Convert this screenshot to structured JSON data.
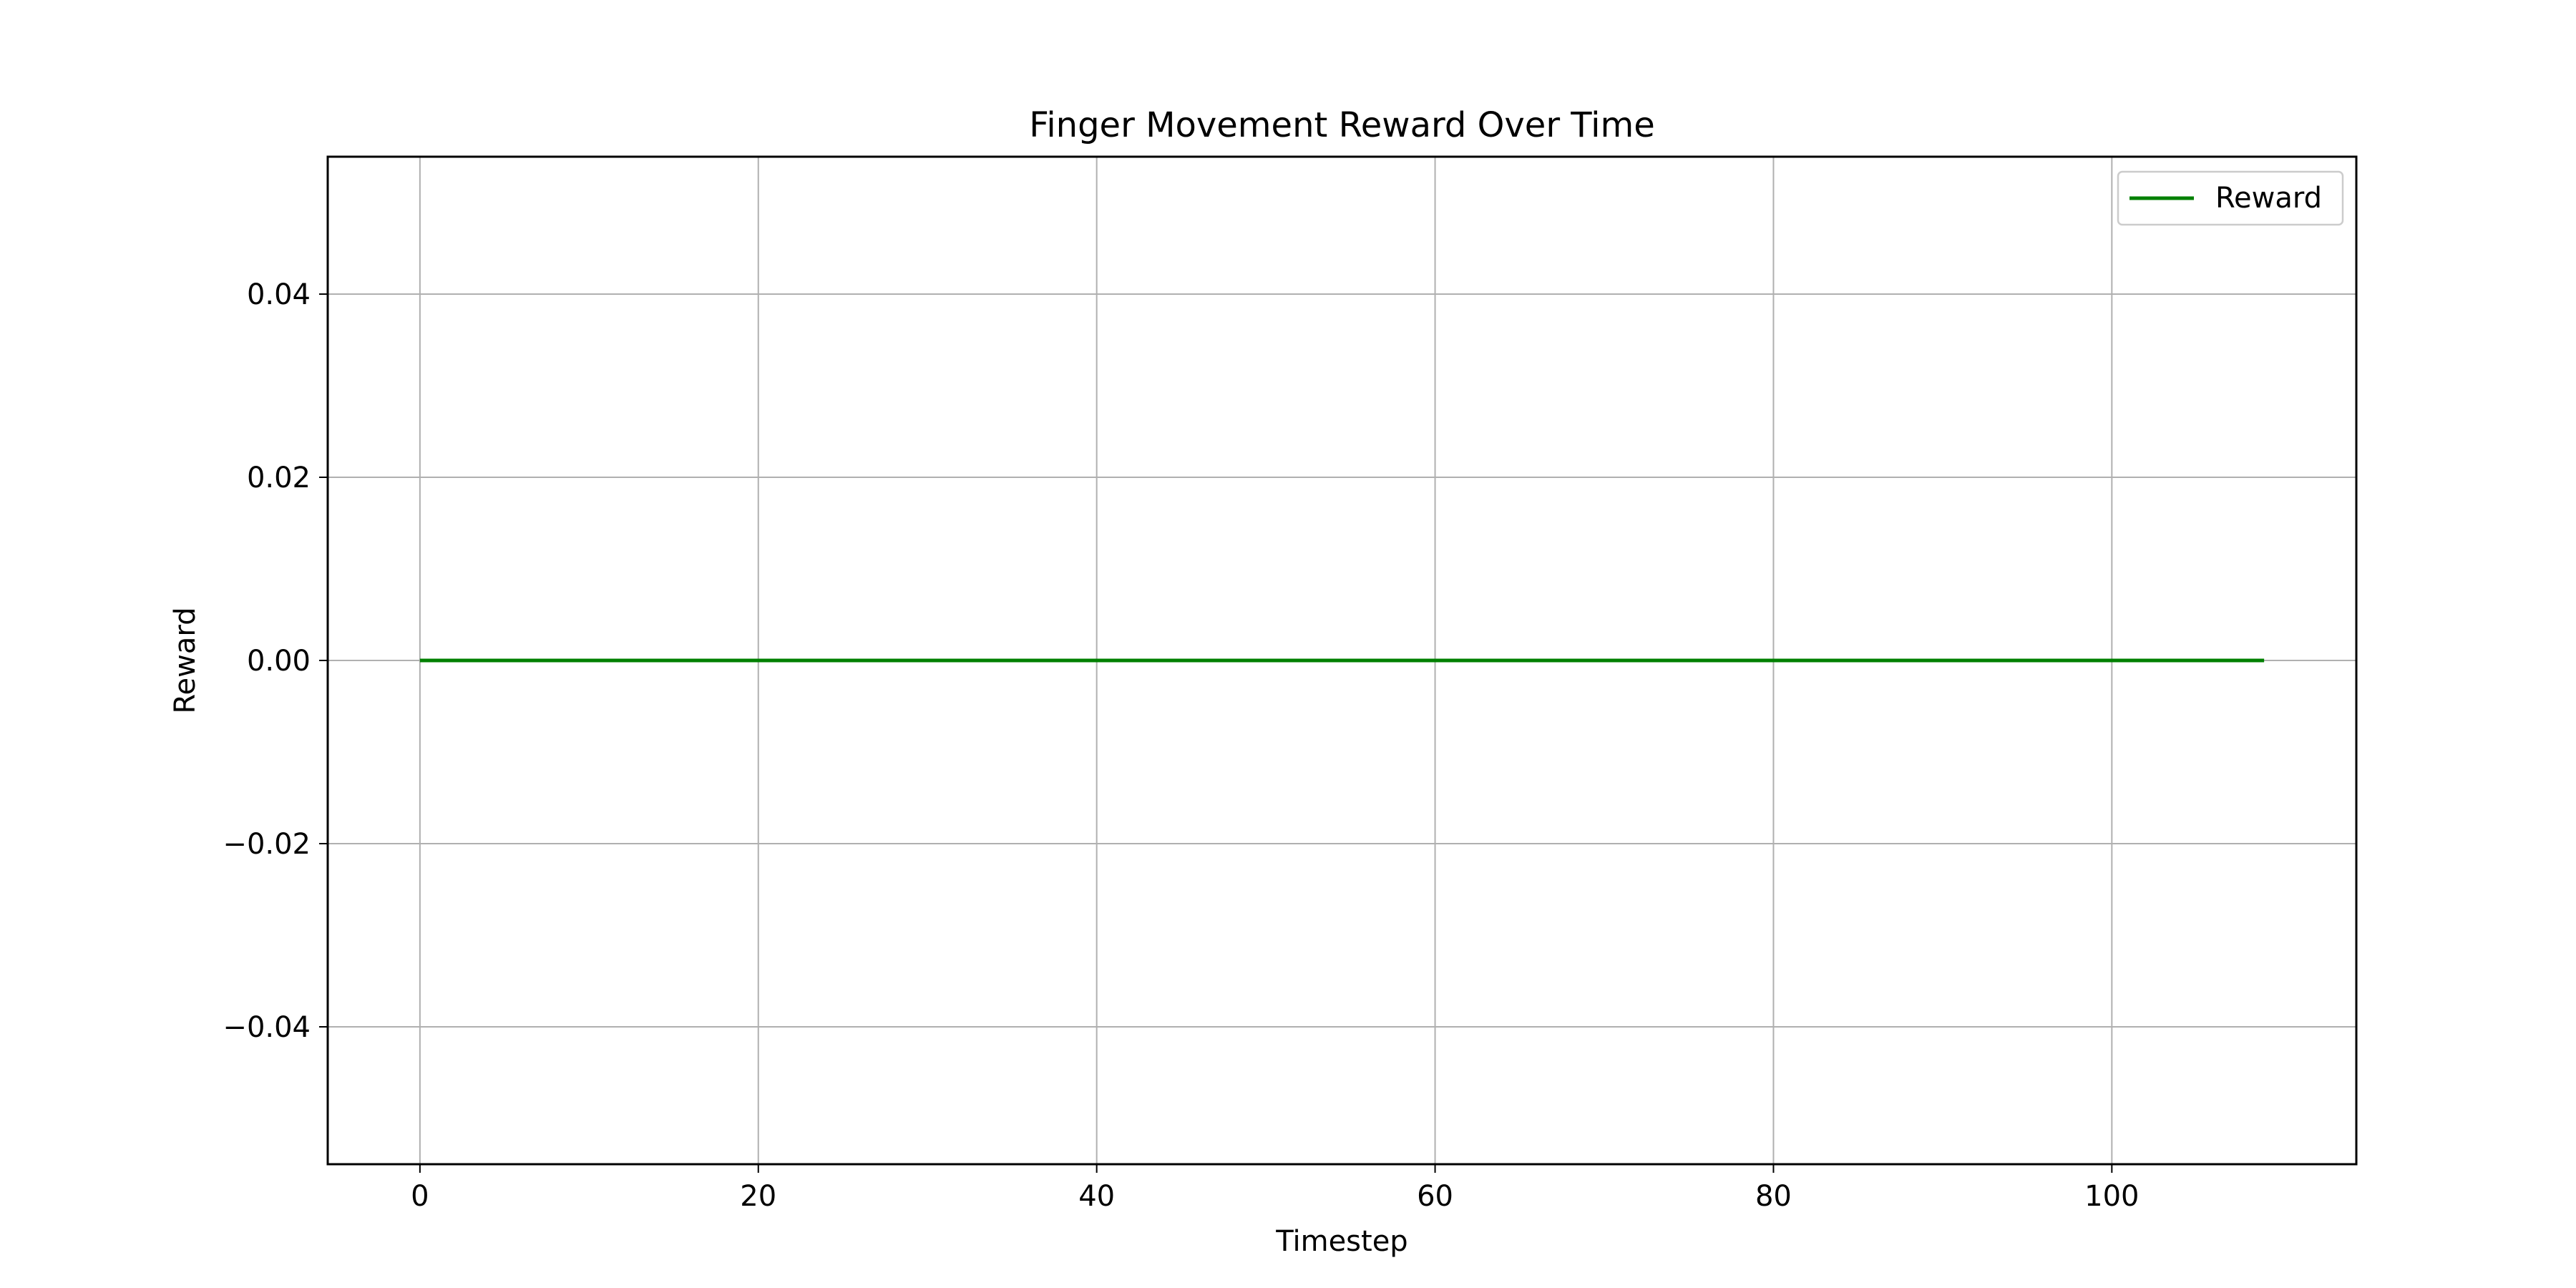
{
  "chart_data": {
    "type": "line",
    "title": "Finger Movement Reward Over Time",
    "xlabel": "Timestep",
    "ylabel": "Reward",
    "xlim": [
      -5.45,
      114.45
    ],
    "ylim": [
      -0.055,
      0.055
    ],
    "xticks": [
      0,
      20,
      40,
      60,
      80,
      100
    ],
    "xtick_labels": [
      "0",
      "20",
      "40",
      "60",
      "80",
      "100"
    ],
    "yticks": [
      -0.04,
      -0.02,
      0.0,
      0.02,
      0.04
    ],
    "ytick_labels": [
      "−0.04",
      "−0.02",
      "0.00",
      "0.02",
      "0.04"
    ],
    "grid": true,
    "legend_position": "upper right",
    "series": [
      {
        "name": "Reward",
        "color": "#008000",
        "x": [
          0,
          109
        ],
        "y": [
          0.0,
          0.0
        ]
      }
    ]
  }
}
